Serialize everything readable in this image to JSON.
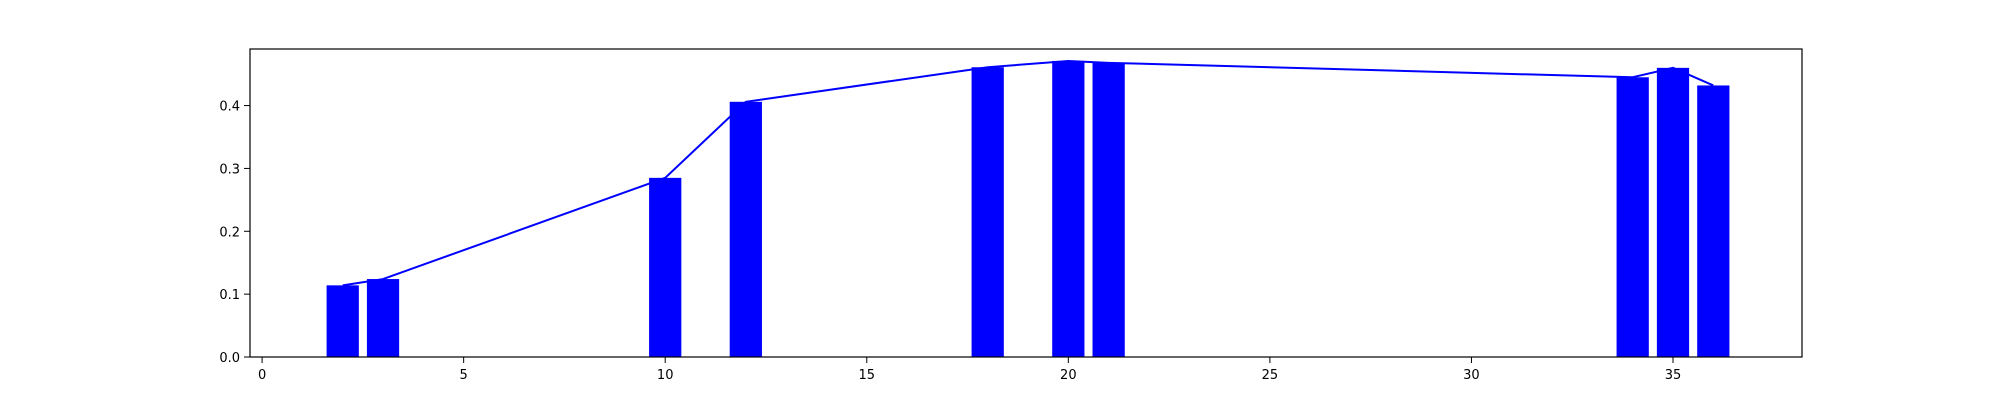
{
  "chart_data": {
    "type": "bar",
    "title": "",
    "xlabel": "",
    "ylabel": "",
    "xlim": [
      -0.3,
      38.2
    ],
    "ylim": [
      0,
      0.49
    ],
    "grid": false,
    "legend": "none",
    "colors": {
      "bar": "#0000ff",
      "line": "#0000ff",
      "axes": "#000000",
      "background": "#ffffff"
    },
    "x_ticks": [
      {
        "value": 0,
        "label": "0"
      },
      {
        "value": 5,
        "label": "5"
      },
      {
        "value": 10,
        "label": "10"
      },
      {
        "value": 15,
        "label": "15"
      },
      {
        "value": 20,
        "label": "20"
      },
      {
        "value": 25,
        "label": "25"
      },
      {
        "value": 30,
        "label": "30"
      },
      {
        "value": 35,
        "label": "35"
      }
    ],
    "y_ticks": [
      {
        "value": 0.0,
        "label": "0.0"
      },
      {
        "value": 0.1,
        "label": "0.1"
      },
      {
        "value": 0.2,
        "label": "0.2"
      },
      {
        "value": 0.3,
        "label": "0.3"
      },
      {
        "value": 0.4,
        "label": "0.4"
      }
    ],
    "bar_width": 0.8,
    "x": [
      2,
      3,
      10,
      12,
      18,
      20,
      21,
      34,
      35,
      36
    ],
    "values": [
      0.114,
      0.124,
      0.285,
      0.406,
      0.461,
      0.471,
      0.468,
      0.445,
      0.46,
      0.432
    ],
    "line": {
      "x": [
        2,
        3,
        10,
        12,
        18,
        20,
        21,
        34,
        35,
        36
      ],
      "y": [
        0.114,
        0.124,
        0.285,
        0.406,
        0.461,
        0.471,
        0.468,
        0.445,
        0.46,
        0.432
      ]
    }
  }
}
